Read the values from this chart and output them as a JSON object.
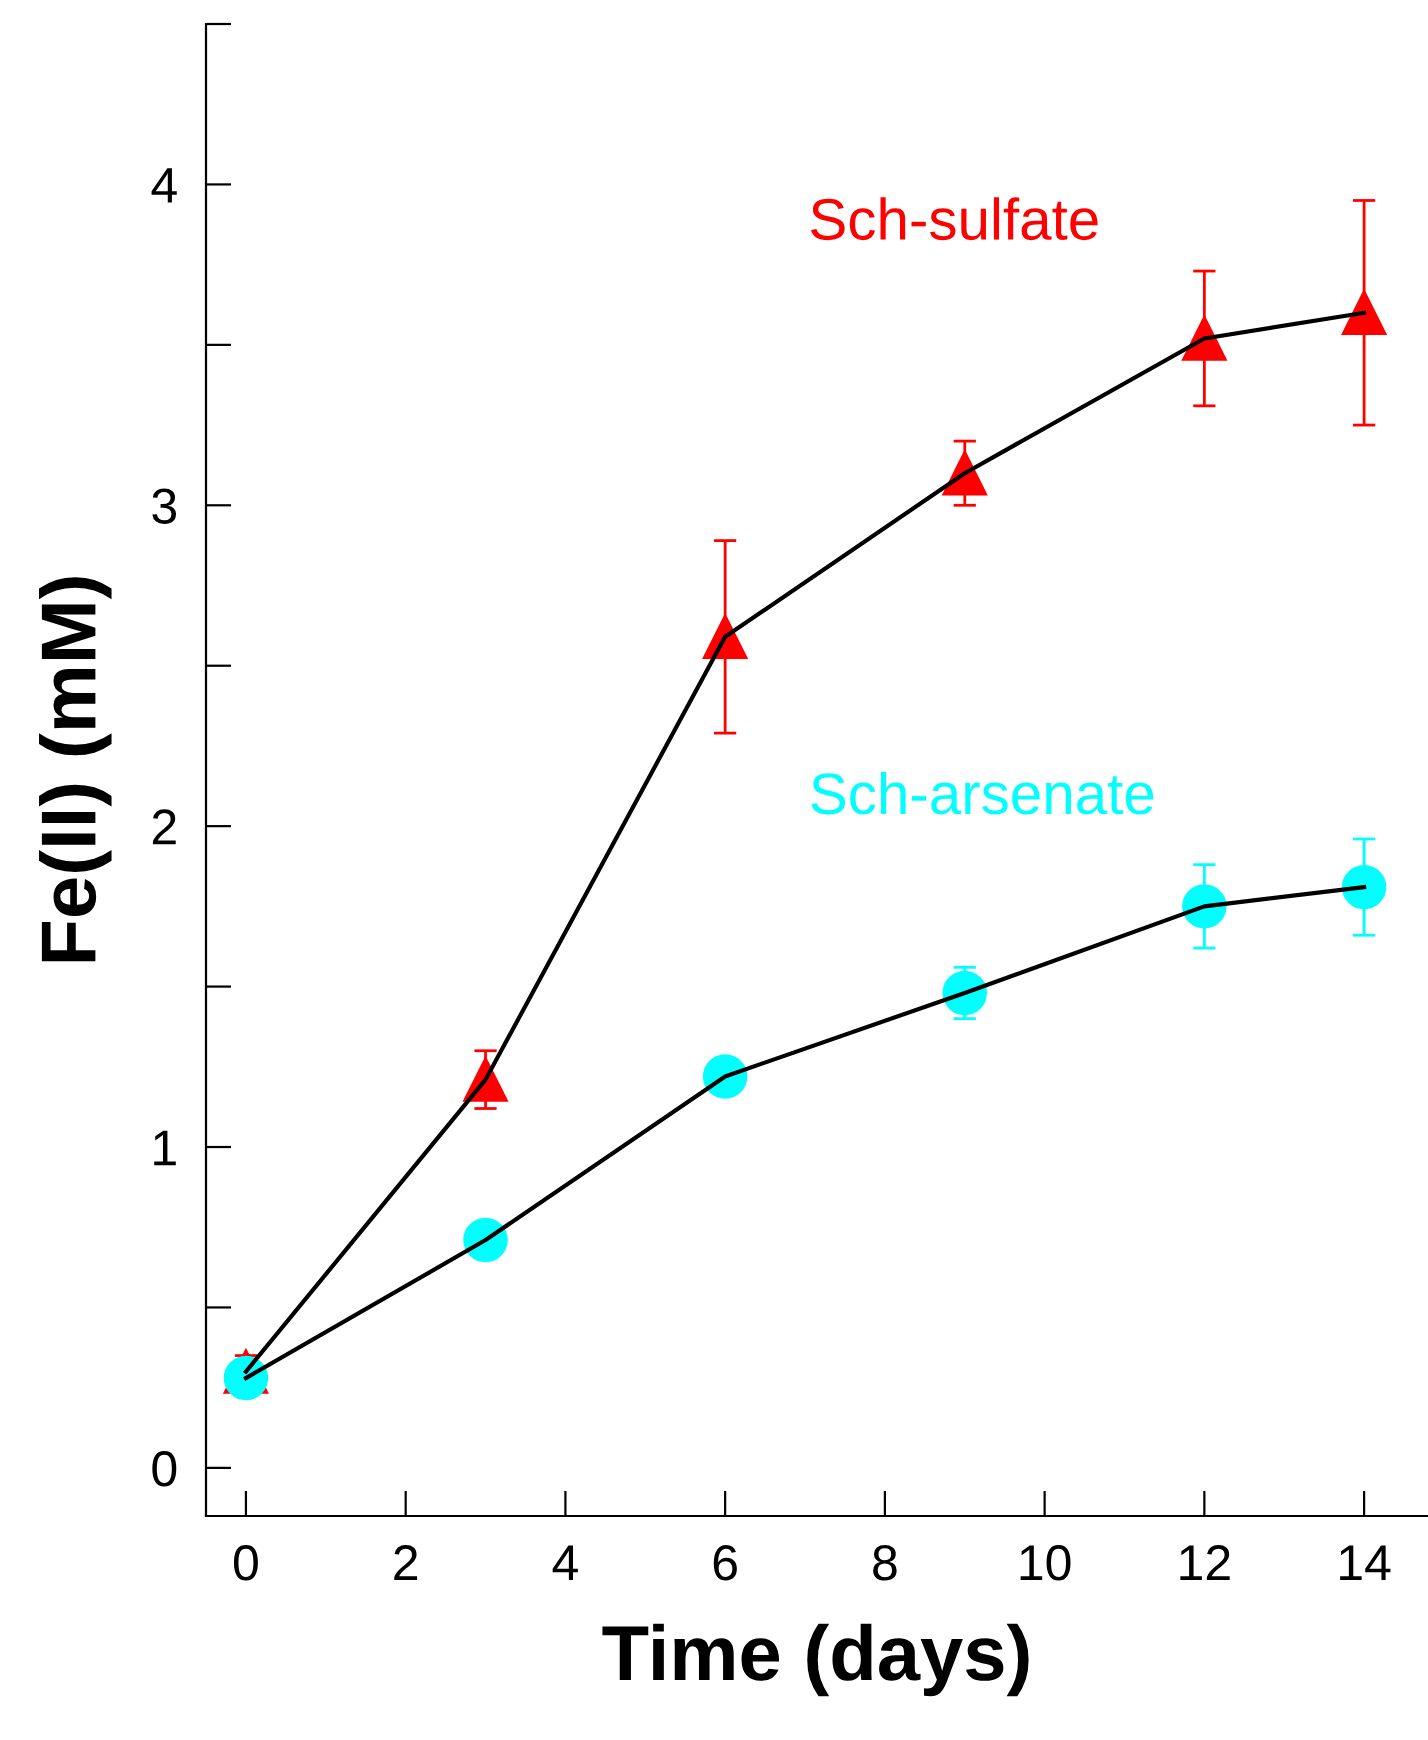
{
  "chart_data": {
    "type": "line",
    "xlabel": "Time (days)",
    "ylabel": "Fe(II) (mM)",
    "x": [
      0,
      3,
      6,
      9,
      12,
      14
    ],
    "xlim": [
      -0.5,
      14.8
    ],
    "xticks": [
      0,
      2,
      4,
      6,
      8,
      10,
      12,
      14
    ],
    "ylim": [
      -0.15,
      4.5
    ],
    "yticks": [
      0,
      {
        "value": 0.5,
        "label": null
      },
      1,
      {
        "value": 1.5,
        "label": null
      },
      2,
      {
        "value": 2.5,
        "label": null
      },
      3,
      {
        "value": 3.5,
        "label": null
      },
      4,
      {
        "value": 4.5,
        "label": null
      }
    ],
    "grid": false,
    "legend": false,
    "line_style": "solid",
    "series": [
      {
        "name": "Sch-sulfate",
        "color": "#ff0000",
        "marker": "triangle",
        "values": [
          0.3,
          1.21,
          2.59,
          3.1,
          3.52,
          3.6
        ],
        "errors": [
          0.05,
          0.09,
          0.3,
          0.1,
          0.21,
          0.35
        ]
      },
      {
        "name": "Sch-arsenate",
        "color": "#00ffff",
        "marker": "circle",
        "values": [
          0.28,
          0.71,
          1.22,
          1.48,
          1.75,
          1.81
        ],
        "errors": [
          null,
          null,
          null,
          0.08,
          0.13,
          0.15
        ]
      }
    ]
  }
}
